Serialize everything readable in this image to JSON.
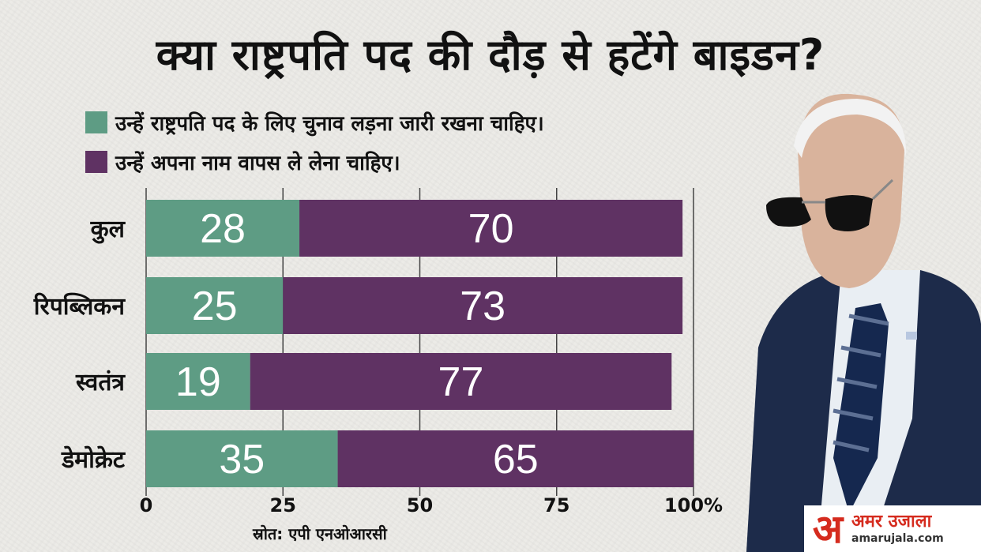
{
  "title": "क्या राष्ट्रपति पद की दौड़ से हटेंगे बाइडन?",
  "legend": [
    {
      "label": "उन्हें राष्ट्रपति पद के लिए चुनाव लड़ना जारी रखना चाहिए।",
      "color": "#5e9c84"
    },
    {
      "label": "उन्हें अपना नाम वापस ले लेना चाहिए।",
      "color": "#5f3263"
    }
  ],
  "source": "स्रोत: एपी एनओआरसी",
  "logo": {
    "name": "अमर उजाला",
    "url": "amarujala.com",
    "mark": "अ"
  },
  "chart_data": {
    "type": "bar",
    "orientation": "horizontal",
    "stacked": true,
    "categories": [
      "कुल",
      "रिपब्लिकन",
      "स्वतंत्र",
      "डेमोक्रेट"
    ],
    "series": [
      {
        "values": [
          28,
          25,
          19,
          35
        ],
        "color": "#5e9c84"
      },
      {
        "values": [
          70,
          73,
          77,
          65
        ],
        "color": "#5f3263"
      }
    ],
    "xlim": [
      0,
      100
    ],
    "xticks": [
      "0",
      "25",
      "50",
      "75",
      "100%"
    ],
    "grid": true,
    "legend_position": "top-left"
  },
  "colors": {
    "background": "#ecebe7",
    "text": "#111111",
    "grid": "#444444",
    "brand": "#d52b1e"
  }
}
